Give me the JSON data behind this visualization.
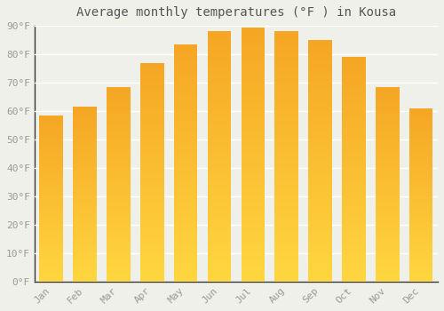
{
  "title": "Average monthly temperatures (°F ) in Kousa",
  "months": [
    "Jan",
    "Feb",
    "Mar",
    "Apr",
    "May",
    "Jun",
    "Jul",
    "Aug",
    "Sep",
    "Oct",
    "Nov",
    "Dec"
  ],
  "values": [
    58.5,
    61.5,
    68.5,
    77,
    83.5,
    88,
    89.5,
    88,
    85,
    79,
    68.5,
    61
  ],
  "bar_color_top": "#F5A623",
  "bar_color_bottom": "#FFD740",
  "background_color": "#F0F0EB",
  "grid_color": "#FFFFFF",
  "ylim": [
    0,
    90
  ],
  "yticks": [
    0,
    10,
    20,
    30,
    40,
    50,
    60,
    70,
    80,
    90
  ],
  "ytick_labels": [
    "0°F",
    "10°F",
    "20°F",
    "30°F",
    "40°F",
    "50°F",
    "60°F",
    "70°F",
    "80°F",
    "90°F"
  ],
  "title_fontsize": 10,
  "tick_fontsize": 8,
  "title_color": "#555555",
  "tick_color": "#999999",
  "bar_width": 0.7,
  "n_gradient_steps": 100
}
